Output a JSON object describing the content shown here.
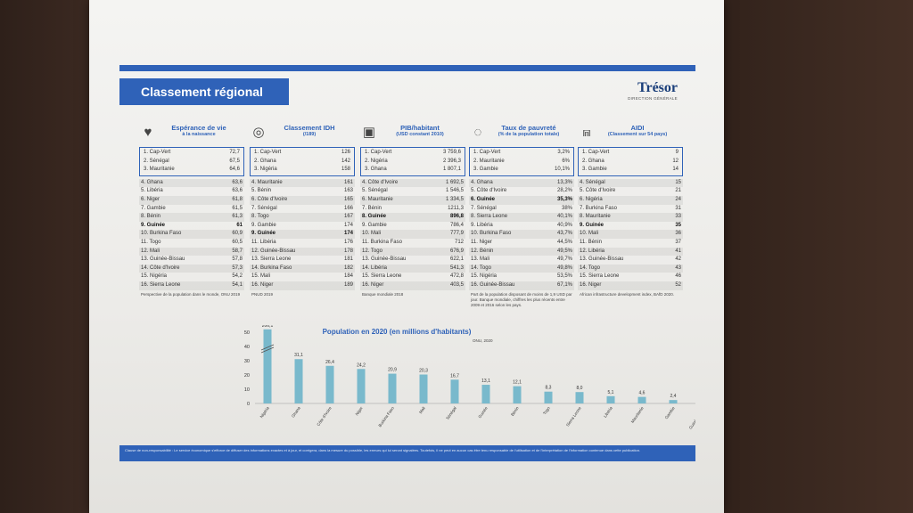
{
  "header": {
    "section_title": "Classement régional",
    "logo_name": "Trésor",
    "logo_sub": "DIRECTION GÉNÉRALE"
  },
  "panels": [
    {
      "title": "Espérance de vie",
      "subtitle": "à la naissance",
      "icon": "heart-icon",
      "top3": [
        {
          "name": "1. Cap-Vert",
          "value": "72,7"
        },
        {
          "name": "2. Sénégal",
          "value": "67,5"
        },
        {
          "name": "3. Mauritanie",
          "value": "64,6"
        }
      ],
      "rest": [
        {
          "name": "4. Ghana",
          "value": "63,6"
        },
        {
          "name": "5. Libéria",
          "value": "63,6"
        },
        {
          "name": "6. Niger",
          "value": "61,8"
        },
        {
          "name": "7. Gambie",
          "value": "61,5"
        },
        {
          "name": "8. Bénin",
          "value": "61,3"
        },
        {
          "name": "9. Guinée",
          "value": "61",
          "bold": true
        },
        {
          "name": "10. Burkina Faso",
          "value": "60,9"
        },
        {
          "name": "11. Togo",
          "value": "60,5"
        },
        {
          "name": "12. Mali",
          "value": "58,7"
        },
        {
          "name": "13. Guinée-Bissau",
          "value": "57,8"
        },
        {
          "name": "14. Côte d'Ivoire",
          "value": "57,3"
        },
        {
          "name": "15. Nigéria",
          "value": "54,2"
        },
        {
          "name": "16. Sierra Leone",
          "value": "54,1"
        }
      ],
      "source": "Perspective de la population dans le monde, ONU 2019"
    },
    {
      "title": "Classement IDH",
      "subtitle": "(/189)",
      "icon": "un-globe-icon",
      "top3": [
        {
          "name": "1. Cap-Vert",
          "value": "126"
        },
        {
          "name": "2. Ghana",
          "value": "142"
        },
        {
          "name": "3. Nigéria",
          "value": "158"
        }
      ],
      "rest": [
        {
          "name": "4. Mauritanie",
          "value": "161"
        },
        {
          "name": "5. Bénin",
          "value": "163"
        },
        {
          "name": "6. Côte d'Ivoire",
          "value": "165"
        },
        {
          "name": "7. Sénégal",
          "value": "166"
        },
        {
          "name": "8. Togo",
          "value": "167"
        },
        {
          "name": "9. Gambie",
          "value": "174"
        },
        {
          "name": "9. Guinée",
          "value": "174",
          "bold": true
        },
        {
          "name": "11. Libéria",
          "value": "176"
        },
        {
          "name": "12. Guinée-Bissau",
          "value": "178"
        },
        {
          "name": "13. Sierra Leone",
          "value": "181"
        },
        {
          "name": "14. Burkina Faso",
          "value": "182"
        },
        {
          "name": "15. Mali",
          "value": "184"
        },
        {
          "name": "16. Niger",
          "value": "189"
        }
      ],
      "source": "PNUD 2019"
    },
    {
      "title": "PIB/habitant",
      "subtitle": "(USD constant 2010)",
      "icon": "money-icon",
      "top3": [
        {
          "name": "1. Cap-Vert",
          "value": "3 759,6"
        },
        {
          "name": "2. Nigéria",
          "value": "2 396,3"
        },
        {
          "name": "3. Ghana",
          "value": "1 807,1"
        }
      ],
      "rest": [
        {
          "name": "4. Côte d'Ivoire",
          "value": "1 692,5"
        },
        {
          "name": "5. Sénégal",
          "value": "1 546,5"
        },
        {
          "name": "6. Mauritanie",
          "value": "1 334,5"
        },
        {
          "name": "7. Bénin",
          "value": "1211,3"
        },
        {
          "name": "8. Guinée",
          "value": "896,8",
          "bold": true
        },
        {
          "name": "9. Gambie",
          "value": "786,4"
        },
        {
          "name": "10. Mali",
          "value": "777,9"
        },
        {
          "name": "11. Burkina Faso",
          "value": "712"
        },
        {
          "name": "12. Togo",
          "value": "676,9"
        },
        {
          "name": "13. Guinée-Bissau",
          "value": "622,1"
        },
        {
          "name": "14. Libéria",
          "value": "541,3"
        },
        {
          "name": "15. Sierra Leone",
          "value": "472,8"
        },
        {
          "name": "16. Niger",
          "value": "403,5"
        }
      ],
      "source": "Banque mondiale 2018"
    },
    {
      "title": "Taux de pauvreté",
      "subtitle": "(% de la population totale)",
      "icon": "ring-icon",
      "top3": [
        {
          "name": "1. Cap-Vert",
          "value": "3,2%"
        },
        {
          "name": "2. Mauritanie",
          "value": "6%"
        },
        {
          "name": "3. Gambie",
          "value": "10,1%"
        }
      ],
      "rest": [
        {
          "name": "4. Ghana",
          "value": "13,3%"
        },
        {
          "name": "5. Côte d'Ivoire",
          "value": "28,2%"
        },
        {
          "name": "6. Guinée",
          "value": "35,3%",
          "bold": true
        },
        {
          "name": "7. Sénégal",
          "value": "38%"
        },
        {
          "name": "8. Sierra Leone",
          "value": "40,1%"
        },
        {
          "name": "9. Libéria",
          "value": "40,9%"
        },
        {
          "name": "10. Burkina Faso",
          "value": "43,7%"
        },
        {
          "name": "11. Niger",
          "value": "44,5%"
        },
        {
          "name": "12. Bénin",
          "value": "49,5%"
        },
        {
          "name": "13. Mali",
          "value": "49,7%"
        },
        {
          "name": "14. Togo",
          "value": "49,8%"
        },
        {
          "name": "15. Nigéria",
          "value": "53,5%"
        },
        {
          "name": "16. Guinée-Bissau",
          "value": "67,1%"
        }
      ],
      "source": "Part de la population disposant de moins de 1,9 USD par jour. Banque mondiale, chiffres les plus récents entre 2009 et 2016 selon les pays."
    },
    {
      "title": "AIDI",
      "subtitle": "(Classement sur 54 pays)",
      "icon": "bridge-icon",
      "top3": [
        {
          "name": "1. Cap-Vert",
          "value": "9"
        },
        {
          "name": "2. Ghana",
          "value": "12"
        },
        {
          "name": "3. Gambie",
          "value": "14"
        }
      ],
      "rest": [
        {
          "name": "4. Sénégal",
          "value": "15"
        },
        {
          "name": "5. Côte d'Ivoire",
          "value": "21"
        },
        {
          "name": "6. Nigéria",
          "value": "24"
        },
        {
          "name": "7. Burkina Faso",
          "value": "31"
        },
        {
          "name": "8. Mauritanie",
          "value": "33"
        },
        {
          "name": "9. Guinée",
          "value": "35",
          "bold": true
        },
        {
          "name": "10. Mali",
          "value": "36"
        },
        {
          "name": "11. Bénin",
          "value": "37"
        },
        {
          "name": "12. Libéria",
          "value": "41"
        },
        {
          "name": "13. Guinée-Bissau",
          "value": "42"
        },
        {
          "name": "14. Togo",
          "value": "43"
        },
        {
          "name": "15. Sierra Leone",
          "value": "46"
        },
        {
          "name": "16. Niger",
          "value": "52"
        }
      ],
      "source": "African infrastructure development index, BAfD 2020."
    }
  ],
  "chart": {
    "title": "Population en 2020 (en millions d'habitants)",
    "source": "ONU, 2020"
  },
  "chart_data": {
    "type": "bar",
    "title": "Population en 2020 (en millions d'habitants)",
    "categories": [
      "Nigéria",
      "Ghana",
      "Côte d'Ivoire",
      "Niger",
      "Burkina Faso",
      "Mali",
      "Sénégal",
      "Guinée",
      "Bénin",
      "Togo",
      "Sierra Leone",
      "Libéria",
      "Mauritanie",
      "Gambie",
      "Guinée-Bissau",
      "Cap-Vert"
    ],
    "values": [
      206.1,
      31.1,
      26.4,
      24.2,
      20.9,
      20.3,
      16.7,
      13.1,
      12.1,
      8.3,
      8.0,
      5.1,
      4.6,
      2.4,
      2.0,
      0.6
    ],
    "value_labels": [
      "206,1",
      "31,1",
      "26,4",
      "24,2",
      "20,9",
      "20,3",
      "16,7",
      "13,1",
      "12,1",
      "8,3",
      "8,0",
      "5,1",
      "4,6",
      "2,4",
      "2,0",
      "0,6"
    ],
    "yticks": [
      "0",
      "10",
      "20",
      "30",
      "40",
      "50"
    ],
    "ylim": [
      0,
      50
    ],
    "axis_break": true,
    "bar_color": "#79b9cc"
  },
  "footer": {
    "text": "Clause de non-responsabilité : Le service économique s'efforce de diffuser des informations exactes et à jour, et corrigera, dans la mesure du possible, les erreurs qui lui seront signalées. Toutefois, il ne peut en aucun cas être tenu responsable de l'utilisation et de l'interprétation de l'information contenue dans cette publication."
  }
}
